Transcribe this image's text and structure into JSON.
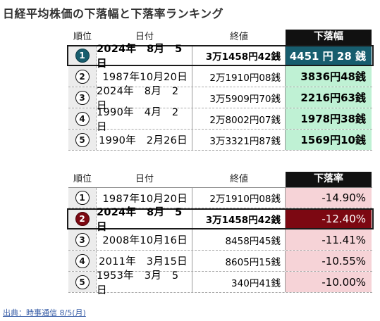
{
  "title": "日経平均株価の下落幅と下落率ランキング",
  "colors": {
    "drop_width_cell": "#bff1d4",
    "drop_width_highlight": "#175d6e",
    "drop_rate_cell": "#f6d3d7",
    "drop_rate_highlight": "#7c0812",
    "header_dark": "#111111"
  },
  "table1": {
    "headers": {
      "rank": "順位",
      "date": "日付",
      "close": "終値",
      "drop": "下落幅"
    },
    "rows": [
      {
        "rank": "1",
        "date": "2024年　8月　5日",
        "close": "3万1458円42銭",
        "drop": "4451 円 28 銭"
      },
      {
        "rank": "2",
        "date": "1987年10月20日",
        "close": "2万1910円08銭",
        "drop": "3836円48銭"
      },
      {
        "rank": "3",
        "date": "2024年　8月　2日",
        "close": "3万5909円70銭",
        "drop": "2216円63銭"
      },
      {
        "rank": "4",
        "date": "1990年　4月　2日",
        "close": "2万8002円07銭",
        "drop": "1978円38銭"
      },
      {
        "rank": "5",
        "date": "1990年　2月26日",
        "close": "3万3321円87銭",
        "drop": "1569円10銭"
      }
    ]
  },
  "table2": {
    "headers": {
      "rank": "順位",
      "date": "日付",
      "close": "終値",
      "drop": "下落率"
    },
    "rows": [
      {
        "rank": "1",
        "date": "1987年10月20日",
        "close": "2万1910円08銭",
        "drop": "-14.90%"
      },
      {
        "rank": "2",
        "date": "2024年　8月　5日",
        "close": "3万1458円42銭",
        "drop": "-12.40%"
      },
      {
        "rank": "3",
        "date": "2008年10月16日",
        "close": "8458円45銭",
        "drop": "-11.41%"
      },
      {
        "rank": "4",
        "date": "2011年　3月15日",
        "close": "8605円15銭",
        "drop": "-10.55%"
      },
      {
        "rank": "5",
        "date": "1953年　3月　5日",
        "close": "340円41銭",
        "drop": "-10.00%"
      }
    ]
  },
  "source": "出典：時事通信 8/5(月)"
}
